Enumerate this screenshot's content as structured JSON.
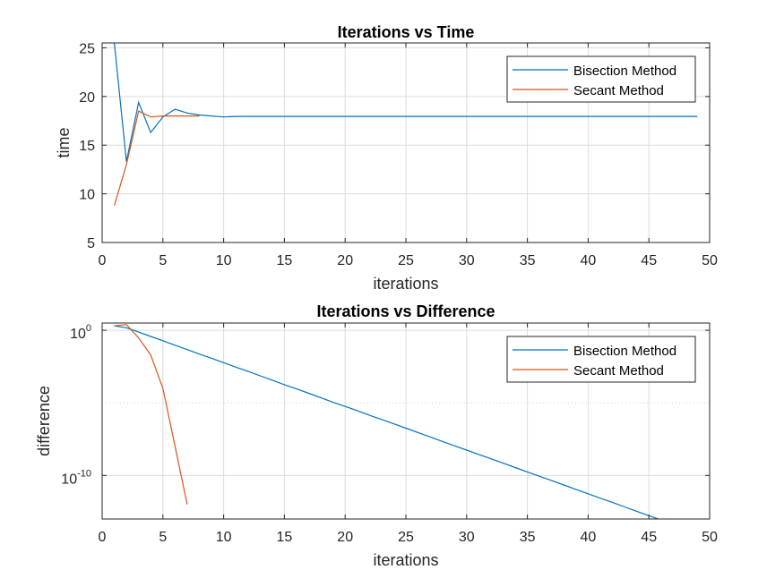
{
  "chart_data": [
    {
      "type": "line",
      "title": "Iterations vs Time",
      "xlabel": "iterations",
      "ylabel": "time",
      "xlim": [
        0,
        50
      ],
      "ylim": [
        5,
        25.5
      ],
      "xticks": [
        0,
        5,
        10,
        15,
        20,
        25,
        30,
        35,
        40,
        45,
        50
      ],
      "yticks": [
        5,
        10,
        15,
        20,
        25
      ],
      "xtick_labels": [
        "0",
        "5",
        "10",
        "15",
        "20",
        "25",
        "30",
        "35",
        "40",
        "45",
        "50"
      ],
      "ytick_labels": [
        "5",
        "10",
        "15",
        "20",
        "25"
      ],
      "grid": true,
      "legend_position": "top-right",
      "colors": {
        "Bisection Method": "#0072BD",
        "Secant Method": "#D95319"
      },
      "series": [
        {
          "name": "Bisection Method",
          "x": [
            1,
            2,
            3,
            4,
            5,
            6,
            7,
            8,
            9,
            10,
            11,
            12,
            13,
            14,
            15,
            16,
            17,
            18,
            19,
            20,
            21,
            22,
            23,
            24,
            25,
            26,
            27,
            28,
            29,
            30,
            31,
            32,
            33,
            34,
            35,
            36,
            37,
            38,
            39,
            40,
            41,
            42,
            43,
            44,
            45,
            46,
            47,
            48,
            49
          ],
          "y": [
            25.5,
            13.3,
            19.4,
            16.3,
            17.9,
            18.7,
            18.3,
            18.1,
            18.0,
            17.9,
            17.95,
            17.95,
            17.95,
            17.95,
            17.95,
            17.95,
            17.95,
            17.95,
            17.95,
            17.95,
            17.95,
            17.95,
            17.95,
            17.95,
            17.95,
            17.95,
            17.95,
            17.95,
            17.95,
            17.95,
            17.95,
            17.95,
            17.95,
            17.95,
            17.95,
            17.95,
            17.95,
            17.95,
            17.95,
            17.95,
            17.95,
            17.95,
            17.95,
            17.95,
            17.95,
            17.95,
            17.95,
            17.95,
            17.95
          ]
        },
        {
          "name": "Secant Method",
          "x": [
            1,
            2,
            3,
            4,
            5,
            6,
            7,
            8
          ],
          "y": [
            8.8,
            13.0,
            18.5,
            17.9,
            18.0,
            18.0,
            18.0,
            18.0
          ]
        }
      ]
    },
    {
      "type": "line",
      "title": "Iterations vs Difference",
      "xlabel": "iterations",
      "ylabel": "difference",
      "xlim": [
        0,
        50
      ],
      "ylim_log10": [
        -13,
        0.5
      ],
      "yscale": "log",
      "xticks": [
        0,
        5,
        10,
        15,
        20,
        25,
        30,
        35,
        40,
        45,
        50
      ],
      "xtick_labels": [
        "0",
        "5",
        "10",
        "15",
        "20",
        "25",
        "30",
        "35",
        "40",
        "45",
        "50"
      ],
      "ytick_labels": [
        {
          "base": "10",
          "exp": "0",
          "value": 1
        },
        {
          "base": "10",
          "exp": "-10",
          "value": 1e-10
        }
      ],
      "grid": true,
      "legend_position": "top-right",
      "colors": {
        "Bisection Method": "#0072BD",
        "Secant Method": "#D95319"
      },
      "series": [
        {
          "name": "Bisection Method",
          "x": [
            1,
            2,
            3,
            4,
            5,
            6,
            7,
            8,
            9,
            10,
            11,
            12,
            13,
            14,
            15,
            16,
            17,
            18,
            19,
            20,
            21,
            22,
            23,
            24,
            25,
            26,
            27,
            28,
            29,
            30,
            31,
            32,
            33,
            34,
            35,
            36,
            37,
            38,
            39,
            40,
            41,
            42,
            43,
            44,
            45,
            46,
            47
          ],
          "y": [
            2.0,
            1.5,
            0.75,
            0.375,
            0.19,
            0.094,
            0.047,
            0.023,
            0.012,
            0.0059,
            0.0029,
            0.0015,
            0.00073,
            0.00037,
            0.00018,
            9.2e-05,
            4.6e-05,
            2.3e-05,
            1.1e-05,
            5.7e-06,
            2.9e-06,
            1.4e-06,
            7.2e-07,
            3.6e-07,
            1.8e-07,
            9e-08,
            4.5e-08,
            2.2e-08,
            1.1e-08,
            5.6e-09,
            2.8e-09,
            1.4e-09,
            7e-10,
            3.5e-10,
            1.75e-10,
            8.7e-11,
            4.4e-11,
            2.2e-11,
            1.1e-11,
            5.5e-12,
            2.7e-12,
            1.4e-12,
            6.8e-13,
            3.4e-13,
            1.7e-13,
            8.5e-14,
            4.3e-14
          ]
        },
        {
          "name": "Secant Method",
          "x": [
            1,
            2,
            3,
            4,
            5,
            6,
            7
          ],
          "y": [
            2.0,
            2.5,
            0.3,
            0.02,
            0.0001,
            1e-08,
            1e-12
          ]
        }
      ]
    }
  ]
}
